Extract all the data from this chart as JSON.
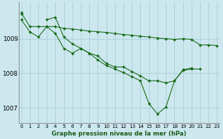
{
  "xlabel": "Graphe pression niveau de la mer (hPa)",
  "bg_color": "#cce8ee",
  "grid_color": "#aacdd5",
  "line_color": "#1a6b1a",
  "marker_color": "#1a6b1a",
  "ylim": [
    1006.55,
    1010.05
  ],
  "xlim": [
    -0.3,
    23.3
  ],
  "yticks": [
    1007,
    1008,
    1009
  ],
  "xticks": [
    0,
    1,
    2,
    3,
    4,
    5,
    6,
    7,
    8,
    9,
    10,
    11,
    12,
    13,
    14,
    15,
    16,
    17,
    18,
    19,
    20,
    21,
    22,
    23
  ],
  "series": [
    [
      1009.75,
      1009.35,
      1009.35,
      1009.35,
      1009.35,
      1009.3,
      1009.28,
      1009.25,
      1009.22,
      1009.2,
      1009.18,
      1009.15,
      1009.12,
      1009.1,
      1009.07,
      1009.05,
      1009.02,
      1009.0,
      1008.98,
      1009.0,
      1008.98,
      1008.82,
      1008.82,
      1008.8
    ],
    [
      1009.55,
      1009.2,
      1009.05,
      1009.35,
      1009.15,
      1008.72,
      1008.58,
      1008.72,
      1008.58,
      1008.5,
      1008.28,
      1008.18,
      1008.18,
      1008.05,
      1007.92,
      1007.78,
      1007.78,
      1007.72,
      1007.78,
      1008.08,
      1008.12,
      1008.12,
      null,
      null
    ],
    [
      null,
      null,
      null,
      1009.55,
      1009.62,
      1009.05,
      1008.85,
      1008.72,
      1008.58,
      1008.38,
      1008.22,
      1008.12,
      1008.02,
      1007.9,
      1007.78,
      1007.12,
      1006.82,
      1007.02,
      1007.78,
      1008.1,
      1008.15,
      null,
      null,
      null
    ],
    [
      1009.72,
      null,
      null,
      null,
      null,
      null,
      null,
      null,
      null,
      null,
      null,
      null,
      null,
      null,
      null,
      null,
      null,
      null,
      null,
      null,
      null,
      null,
      null,
      null
    ]
  ]
}
